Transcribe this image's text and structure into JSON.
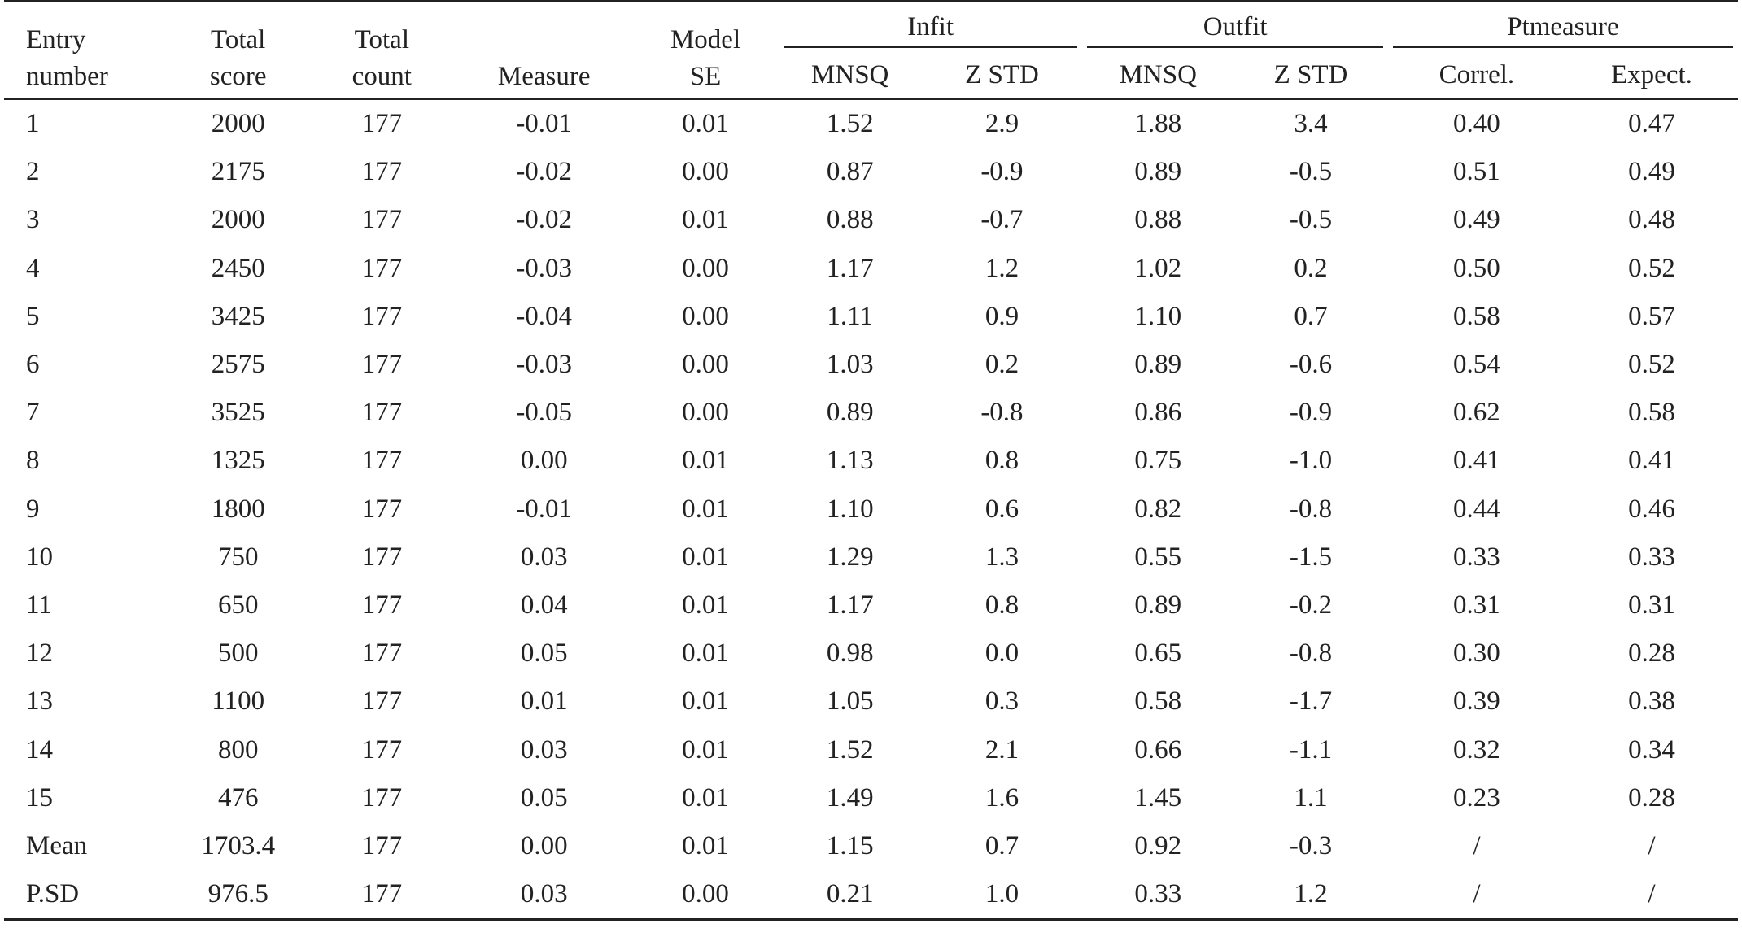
{
  "headers": {
    "entry": [
      "Entry",
      "number"
    ],
    "total_score": [
      "Total",
      "score"
    ],
    "total_count": [
      "Total",
      "count"
    ],
    "measure": "Measure",
    "model_se": [
      "Model",
      "SE"
    ],
    "infit": "Infit",
    "outfit": "Outfit",
    "ptmeasure": "Ptmeasure",
    "infit_mnsq": "MNSQ",
    "infit_zstd": "Z STD",
    "outfit_mnsq": "MNSQ",
    "outfit_zstd": "Z STD",
    "correl": "Correl.",
    "expect": "Expect."
  },
  "rows": [
    [
      "1",
      "2000",
      "177",
      "-0.01",
      "0.01",
      "1.52",
      "2.9",
      "1.88",
      "3.4",
      "0.40",
      "0.47"
    ],
    [
      "2",
      "2175",
      "177",
      "-0.02",
      "0.00",
      "0.87",
      "-0.9",
      "0.89",
      "-0.5",
      "0.51",
      "0.49"
    ],
    [
      "3",
      "2000",
      "177",
      "-0.02",
      "0.01",
      "0.88",
      "-0.7",
      "0.88",
      "-0.5",
      "0.49",
      "0.48"
    ],
    [
      "4",
      "2450",
      "177",
      "-0.03",
      "0.00",
      "1.17",
      "1.2",
      "1.02",
      "0.2",
      "0.50",
      "0.52"
    ],
    [
      "5",
      "3425",
      "177",
      "-0.04",
      "0.00",
      "1.11",
      "0.9",
      "1.10",
      "0.7",
      "0.58",
      "0.57"
    ],
    [
      "6",
      "2575",
      "177",
      "-0.03",
      "0.00",
      "1.03",
      "0.2",
      "0.89",
      "-0.6",
      "0.54",
      "0.52"
    ],
    [
      "7",
      "3525",
      "177",
      "-0.05",
      "0.00",
      "0.89",
      "-0.8",
      "0.86",
      "-0.9",
      "0.62",
      "0.58"
    ],
    [
      "8",
      "1325",
      "177",
      "0.00",
      "0.01",
      "1.13",
      "0.8",
      "0.75",
      "-1.0",
      "0.41",
      "0.41"
    ],
    [
      "9",
      "1800",
      "177",
      "-0.01",
      "0.01",
      "1.10",
      "0.6",
      "0.82",
      "-0.8",
      "0.44",
      "0.46"
    ],
    [
      "10",
      "750",
      "177",
      "0.03",
      "0.01",
      "1.29",
      "1.3",
      "0.55",
      "-1.5",
      "0.33",
      "0.33"
    ],
    [
      "11",
      "650",
      "177",
      "0.04",
      "0.01",
      "1.17",
      "0.8",
      "0.89",
      "-0.2",
      "0.31",
      "0.31"
    ],
    [
      "12",
      "500",
      "177",
      "0.05",
      "0.01",
      "0.98",
      "0.0",
      "0.65",
      "-0.8",
      "0.30",
      "0.28"
    ],
    [
      "13",
      "1100",
      "177",
      "0.01",
      "0.01",
      "1.05",
      "0.3",
      "0.58",
      "-1.7",
      "0.39",
      "0.38"
    ],
    [
      "14",
      "800",
      "177",
      "0.03",
      "0.01",
      "1.52",
      "2.1",
      "0.66",
      "-1.1",
      "0.32",
      "0.34"
    ],
    [
      "15",
      "476",
      "177",
      "0.05",
      "0.01",
      "1.49",
      "1.6",
      "1.45",
      "1.1",
      "0.23",
      "0.28"
    ],
    [
      "Mean",
      "1703.4",
      "177",
      "0.00",
      "0.01",
      "1.15",
      "0.7",
      "0.92",
      "-0.3",
      "/",
      "/"
    ],
    [
      "P.SD",
      "976.5",
      "177",
      "0.03",
      "0.00",
      "0.21",
      "1.0",
      "0.33",
      "1.2",
      "/",
      "/"
    ]
  ]
}
